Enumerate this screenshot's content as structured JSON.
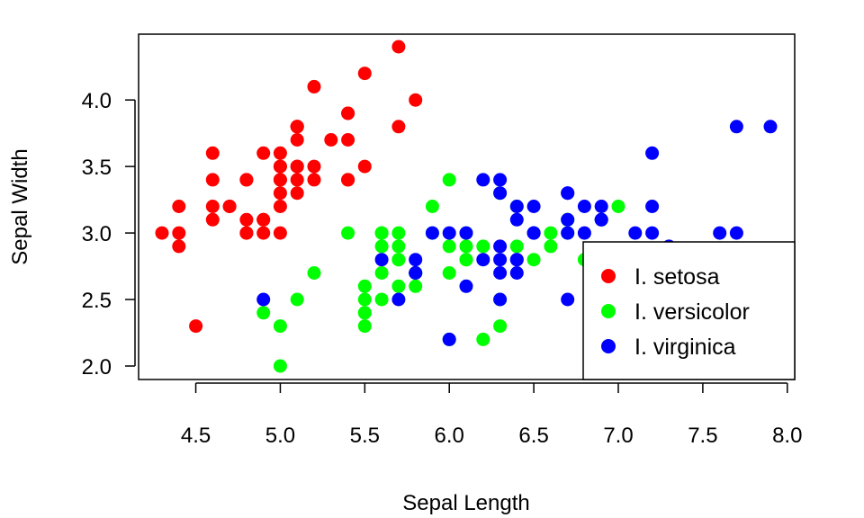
{
  "chart_data": {
    "type": "scatter",
    "title": "",
    "xlabel": "Sepal Length",
    "ylabel": "Sepal Width",
    "xlim": [
      4.3,
      7.9
    ],
    "ylim": [
      2.0,
      4.4
    ],
    "xticks": [
      "4.5",
      "5.0",
      "5.5",
      "6.0",
      "6.5",
      "7.0",
      "7.5",
      "8.0"
    ],
    "yticks": [
      "2.0",
      "2.5",
      "3.0",
      "3.5",
      "4.0"
    ],
    "grid": false,
    "legend_position": "bottom-right",
    "series": [
      {
        "name": "I. setosa",
        "color": "#ff0000",
        "points": [
          [
            5.1,
            3.5
          ],
          [
            4.9,
            3.0
          ],
          [
            4.7,
            3.2
          ],
          [
            4.6,
            3.1
          ],
          [
            5.0,
            3.6
          ],
          [
            5.4,
            3.9
          ],
          [
            4.6,
            3.4
          ],
          [
            5.0,
            3.4
          ],
          [
            4.4,
            2.9
          ],
          [
            4.9,
            3.1
          ],
          [
            5.4,
            3.7
          ],
          [
            4.8,
            3.4
          ],
          [
            4.8,
            3.0
          ],
          [
            4.3,
            3.0
          ],
          [
            5.8,
            4.0
          ],
          [
            5.7,
            4.4
          ],
          [
            5.4,
            3.9
          ],
          [
            5.1,
            3.5
          ],
          [
            5.7,
            3.8
          ],
          [
            5.1,
            3.8
          ],
          [
            5.4,
            3.4
          ],
          [
            5.1,
            3.7
          ],
          [
            4.6,
            3.6
          ],
          [
            5.1,
            3.3
          ],
          [
            4.8,
            3.4
          ],
          [
            5.0,
            3.0
          ],
          [
            5.0,
            3.4
          ],
          [
            5.2,
            3.5
          ],
          [
            5.2,
            3.4
          ],
          [
            4.7,
            3.2
          ],
          [
            4.8,
            3.1
          ],
          [
            5.4,
            3.4
          ],
          [
            5.2,
            4.1
          ],
          [
            5.5,
            4.2
          ],
          [
            4.9,
            3.1
          ],
          [
            5.0,
            3.2
          ],
          [
            5.5,
            3.5
          ],
          [
            4.9,
            3.6
          ],
          [
            4.4,
            3.0
          ],
          [
            5.1,
            3.4
          ],
          [
            5.0,
            3.5
          ],
          [
            4.5,
            2.3
          ],
          [
            4.4,
            3.2
          ],
          [
            5.0,
            3.5
          ],
          [
            5.1,
            3.8
          ],
          [
            4.8,
            3.0
          ],
          [
            5.1,
            3.8
          ],
          [
            4.6,
            3.2
          ],
          [
            5.3,
            3.7
          ],
          [
            5.0,
            3.3
          ]
        ]
      },
      {
        "name": "I. versicolor",
        "color": "#00ff00",
        "points": [
          [
            7.0,
            3.2
          ],
          [
            6.4,
            3.2
          ],
          [
            6.9,
            3.1
          ],
          [
            5.5,
            2.3
          ],
          [
            6.5,
            2.8
          ],
          [
            5.7,
            2.8
          ],
          [
            6.3,
            3.3
          ],
          [
            4.9,
            2.4
          ],
          [
            6.6,
            2.9
          ],
          [
            5.2,
            2.7
          ],
          [
            5.0,
            2.0
          ],
          [
            5.9,
            3.0
          ],
          [
            6.0,
            2.2
          ],
          [
            6.1,
            2.9
          ],
          [
            5.6,
            2.9
          ],
          [
            6.7,
            3.1
          ],
          [
            5.6,
            3.0
          ],
          [
            5.8,
            2.7
          ],
          [
            6.2,
            2.2
          ],
          [
            5.6,
            2.5
          ],
          [
            5.9,
            3.2
          ],
          [
            6.1,
            2.8
          ],
          [
            6.3,
            2.5
          ],
          [
            6.1,
            2.8
          ],
          [
            6.4,
            2.9
          ],
          [
            6.6,
            3.0
          ],
          [
            6.8,
            2.8
          ],
          [
            6.7,
            3.0
          ],
          [
            6.0,
            2.9
          ],
          [
            5.7,
            2.6
          ],
          [
            5.5,
            2.4
          ],
          [
            5.5,
            2.4
          ],
          [
            5.8,
            2.7
          ],
          [
            6.0,
            2.7
          ],
          [
            5.4,
            3.0
          ],
          [
            6.0,
            3.4
          ],
          [
            6.7,
            3.1
          ],
          [
            6.3,
            2.3
          ],
          [
            5.6,
            3.0
          ],
          [
            5.5,
            2.5
          ],
          [
            5.5,
            2.6
          ],
          [
            6.1,
            3.0
          ],
          [
            5.8,
            2.6
          ],
          [
            5.0,
            2.3
          ],
          [
            5.6,
            2.7
          ],
          [
            5.7,
            3.0
          ],
          [
            5.7,
            2.9
          ],
          [
            6.2,
            2.9
          ],
          [
            5.1,
            2.5
          ],
          [
            5.7,
            2.8
          ]
        ]
      },
      {
        "name": "I. virginica",
        "color": "#0000ff",
        "points": [
          [
            6.3,
            3.3
          ],
          [
            5.8,
            2.7
          ],
          [
            7.1,
            3.0
          ],
          [
            6.3,
            2.9
          ],
          [
            6.5,
            3.0
          ],
          [
            7.6,
            3.0
          ],
          [
            4.9,
            2.5
          ],
          [
            7.3,
            2.9
          ],
          [
            6.7,
            2.5
          ],
          [
            7.2,
            3.6
          ],
          [
            6.5,
            3.2
          ],
          [
            6.4,
            2.7
          ],
          [
            6.8,
            3.0
          ],
          [
            5.7,
            2.5
          ],
          [
            5.8,
            2.8
          ],
          [
            6.4,
            3.2
          ],
          [
            6.5,
            3.0
          ],
          [
            7.7,
            3.8
          ],
          [
            7.7,
            2.6
          ],
          [
            6.0,
            2.2
          ],
          [
            6.9,
            3.2
          ],
          [
            5.6,
            2.8
          ],
          [
            7.7,
            2.8
          ],
          [
            6.3,
            2.7
          ],
          [
            6.7,
            3.3
          ],
          [
            7.2,
            3.2
          ],
          [
            6.2,
            2.8
          ],
          [
            6.1,
            3.0
          ],
          [
            6.4,
            2.8
          ],
          [
            7.2,
            3.0
          ],
          [
            7.4,
            2.8
          ],
          [
            7.9,
            3.8
          ],
          [
            6.4,
            2.8
          ],
          [
            6.3,
            2.8
          ],
          [
            6.1,
            2.6
          ],
          [
            7.7,
            3.0
          ],
          [
            6.3,
            3.4
          ],
          [
            6.4,
            3.1
          ],
          [
            6.0,
            3.0
          ],
          [
            6.9,
            3.1
          ],
          [
            6.7,
            3.1
          ],
          [
            6.9,
            3.1
          ],
          [
            5.8,
            2.7
          ],
          [
            6.8,
            3.2
          ],
          [
            6.7,
            3.3
          ],
          [
            6.7,
            3.0
          ],
          [
            6.3,
            2.5
          ],
          [
            6.5,
            3.0
          ],
          [
            6.2,
            3.4
          ],
          [
            5.9,
            3.0
          ]
        ]
      }
    ]
  }
}
